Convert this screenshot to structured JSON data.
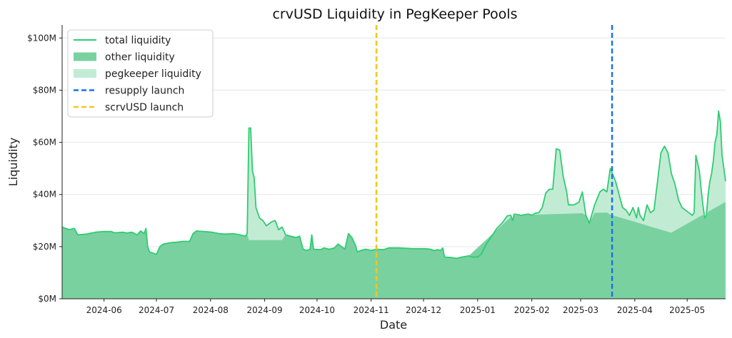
{
  "chart_data": {
    "type": "area",
    "title": "crvUSD Liquidity in PegKeeper Pools",
    "xlabel": "Date",
    "ylabel": "Liquidity",
    "x_range": [
      "2024-05-08",
      "2025-05-23"
    ],
    "ylim": [
      0,
      105
    ],
    "y_ticks": [
      {
        "value": 0,
        "label": "$0M"
      },
      {
        "value": 20,
        "label": "$20M"
      },
      {
        "value": 40,
        "label": "$40M"
      },
      {
        "value": 60,
        "label": "$60M"
      },
      {
        "value": 80,
        "label": "$80M"
      },
      {
        "value": 100,
        "label": "$100M"
      }
    ],
    "x_ticks": [
      {
        "date": "2024-06-01",
        "label": "2024-06"
      },
      {
        "date": "2024-07-01",
        "label": "2024-07"
      },
      {
        "date": "2024-08-01",
        "label": "2024-08"
      },
      {
        "date": "2024-09-01",
        "label": "2024-09"
      },
      {
        "date": "2024-10-01",
        "label": "2024-10"
      },
      {
        "date": "2024-11-01",
        "label": "2024-11"
      },
      {
        "date": "2024-12-01",
        "label": "2024-12"
      },
      {
        "date": "2025-01-01",
        "label": "2025-01"
      },
      {
        "date": "2025-02-01",
        "label": "2025-02"
      },
      {
        "date": "2025-03-01",
        "label": "2025-03"
      },
      {
        "date": "2025-04-01",
        "label": "2025-04"
      },
      {
        "date": "2025-05-01",
        "label": "2025-05"
      }
    ],
    "grid": "horizontal",
    "legend_position": "top-left",
    "colors": {
      "total": "#2ecc71",
      "other": "#7ad1a0",
      "pegkeeper": "#c2ebd4",
      "resupply": "#1a73e8",
      "scrvusd": "#f5c518"
    },
    "legend": [
      {
        "key": "total",
        "label": "total liquidity",
        "style": "line"
      },
      {
        "key": "other",
        "label": "other liquidity",
        "style": "patch"
      },
      {
        "key": "pegkeeper",
        "label": "pegkeeper liquidity",
        "style": "patch"
      },
      {
        "key": "resupply",
        "label": "resupply launch",
        "style": "dashed"
      },
      {
        "key": "scrvusd",
        "label": "scrvUSD launch",
        "style": "dashed"
      }
    ],
    "vlines": [
      {
        "key": "scrvusd",
        "date": "2024-11-04"
      },
      {
        "key": "resupply",
        "date": "2025-03-19"
      }
    ],
    "series": [
      {
        "name": "total liquidity",
        "key": "total",
        "points": [
          [
            "2024-05-08",
            27.5
          ],
          [
            "2024-05-12",
            26.5
          ],
          [
            "2024-05-15",
            27
          ],
          [
            "2024-05-17",
            24.5
          ],
          [
            "2024-05-22",
            24.8
          ],
          [
            "2024-05-27",
            25.5
          ],
          [
            "2024-06-01",
            25.8
          ],
          [
            "2024-06-05",
            25.8
          ],
          [
            "2024-06-07",
            25.3
          ],
          [
            "2024-06-12",
            25.5
          ],
          [
            "2024-06-14",
            25.2
          ],
          [
            "2024-06-17",
            25.5
          ],
          [
            "2024-06-20",
            24.5
          ],
          [
            "2024-06-22",
            26
          ],
          [
            "2024-06-24",
            25
          ],
          [
            "2024-06-25",
            27
          ],
          [
            "2024-06-26",
            20
          ],
          [
            "2024-06-27",
            18
          ],
          [
            "2024-06-29",
            17.5
          ],
          [
            "2024-07-01",
            17
          ],
          [
            "2024-07-03",
            20
          ],
          [
            "2024-07-05",
            21
          ],
          [
            "2024-07-09",
            21.5
          ],
          [
            "2024-07-14",
            21.8
          ],
          [
            "2024-07-16",
            22
          ],
          [
            "2024-07-20",
            22
          ],
          [
            "2024-07-22",
            25
          ],
          [
            "2024-07-24",
            26
          ],
          [
            "2024-07-28",
            25.8
          ],
          [
            "2024-08-02",
            25.5
          ],
          [
            "2024-08-06",
            25
          ],
          [
            "2024-08-09",
            24.8
          ],
          [
            "2024-08-14",
            25
          ],
          [
            "2024-08-18",
            24.5
          ],
          [
            "2024-08-21",
            24
          ],
          [
            "2024-08-22",
            25
          ],
          [
            "2024-08-23",
            65.5
          ],
          [
            "2024-08-24",
            65.5
          ],
          [
            "2024-08-25",
            49
          ],
          [
            "2024-08-26",
            46.5
          ],
          [
            "2024-08-27",
            35
          ],
          [
            "2024-08-29",
            31
          ],
          [
            "2024-08-31",
            30
          ],
          [
            "2024-09-02",
            28
          ],
          [
            "2024-09-05",
            29.5
          ],
          [
            "2024-09-07",
            30
          ],
          [
            "2024-09-09",
            26.5
          ],
          [
            "2024-09-11",
            27.5
          ],
          [
            "2024-09-13",
            24.5
          ],
          [
            "2024-09-16",
            24
          ],
          [
            "2024-09-19",
            23.5
          ],
          [
            "2024-09-21",
            24
          ],
          [
            "2024-09-23",
            19
          ],
          [
            "2024-09-25",
            18.5
          ],
          [
            "2024-09-27",
            19
          ],
          [
            "2024-09-28",
            24.5
          ],
          [
            "2024-09-29",
            19
          ],
          [
            "2024-10-03",
            18.8
          ],
          [
            "2024-10-05",
            19.5
          ],
          [
            "2024-10-08",
            19
          ],
          [
            "2024-10-11",
            19.5
          ],
          [
            "2024-10-13",
            21
          ],
          [
            "2024-10-15",
            20
          ],
          [
            "2024-10-17",
            19
          ],
          [
            "2024-10-19",
            25
          ],
          [
            "2024-10-21",
            23.5
          ],
          [
            "2024-10-23",
            20.5
          ],
          [
            "2024-10-24",
            18
          ],
          [
            "2024-10-26",
            18.5
          ],
          [
            "2024-10-29",
            19
          ],
          [
            "2024-11-01",
            18.5
          ],
          [
            "2024-11-04",
            19
          ],
          [
            "2024-11-08",
            18.8
          ],
          [
            "2024-11-11",
            19.5
          ],
          [
            "2024-11-17",
            19.5
          ],
          [
            "2024-11-25",
            19.2
          ],
          [
            "2024-12-02",
            19.2
          ],
          [
            "2024-12-05",
            19
          ],
          [
            "2024-12-07",
            18.5
          ],
          [
            "2024-12-09",
            18.8
          ],
          [
            "2024-12-11",
            18.5
          ],
          [
            "2024-12-12",
            19.5
          ],
          [
            "2024-12-13",
            16
          ],
          [
            "2024-12-17",
            15.8
          ],
          [
            "2024-12-20",
            15.5
          ],
          [
            "2024-12-23",
            16
          ],
          [
            "2024-12-27",
            16.5
          ],
          [
            "2024-12-29",
            16
          ],
          [
            "2025-01-01",
            16
          ],
          [
            "2025-01-03",
            17
          ],
          [
            "2025-01-06",
            21
          ],
          [
            "2025-01-09",
            24
          ],
          [
            "2025-01-12",
            27
          ],
          [
            "2025-01-15",
            29
          ],
          [
            "2025-01-18",
            31.8
          ],
          [
            "2025-01-20",
            32
          ],
          [
            "2025-01-21",
            30
          ],
          [
            "2025-01-22",
            32.5
          ],
          [
            "2025-01-26",
            32
          ],
          [
            "2025-01-30",
            32.5
          ],
          [
            "2025-02-01",
            32
          ],
          [
            "2025-02-03",
            32.8
          ],
          [
            "2025-02-05",
            33
          ],
          [
            "2025-02-07",
            35
          ],
          [
            "2025-02-09",
            40.5
          ],
          [
            "2025-02-11",
            42
          ],
          [
            "2025-02-13",
            42
          ],
          [
            "2025-02-15",
            57.5
          ],
          [
            "2025-02-17",
            57
          ],
          [
            "2025-02-19",
            47
          ],
          [
            "2025-02-21",
            41
          ],
          [
            "2025-02-22",
            36
          ],
          [
            "2025-02-25",
            36
          ],
          [
            "2025-02-28",
            37
          ],
          [
            "2025-03-02",
            41
          ],
          [
            "2025-03-04",
            32
          ],
          [
            "2025-03-06",
            29
          ],
          [
            "2025-03-09",
            36
          ],
          [
            "2025-03-12",
            41
          ],
          [
            "2025-03-14",
            42
          ],
          [
            "2025-03-16",
            41
          ],
          [
            "2025-03-18",
            50
          ],
          [
            "2025-03-21",
            45
          ],
          [
            "2025-03-23",
            40
          ],
          [
            "2025-03-25",
            35
          ],
          [
            "2025-03-27",
            34
          ],
          [
            "2025-03-29",
            32
          ],
          [
            "2025-03-31",
            35
          ],
          [
            "2025-04-02",
            31
          ],
          [
            "2025-04-03",
            35
          ],
          [
            "2025-04-04",
            32
          ],
          [
            "2025-04-06",
            30
          ],
          [
            "2025-04-08",
            36
          ],
          [
            "2025-04-10",
            33
          ],
          [
            "2025-04-12",
            34
          ],
          [
            "2025-04-14",
            45
          ],
          [
            "2025-04-16",
            56
          ],
          [
            "2025-04-18",
            58.5
          ],
          [
            "2025-04-20",
            56
          ],
          [
            "2025-04-22",
            48
          ],
          [
            "2025-04-24",
            44
          ],
          [
            "2025-04-26",
            38
          ],
          [
            "2025-04-28",
            35
          ],
          [
            "2025-04-30",
            34
          ],
          [
            "2025-05-02",
            33
          ],
          [
            "2025-05-04",
            32
          ],
          [
            "2025-05-05",
            33
          ],
          [
            "2025-05-06",
            55
          ],
          [
            "2025-05-07",
            52
          ],
          [
            "2025-05-08",
            49
          ],
          [
            "2025-05-09",
            42
          ],
          [
            "2025-05-10",
            36
          ],
          [
            "2025-05-11",
            31
          ],
          [
            "2025-05-12",
            32
          ],
          [
            "2025-05-13",
            40
          ],
          [
            "2025-05-14",
            45
          ],
          [
            "2025-05-15",
            48
          ],
          [
            "2025-05-16",
            53
          ],
          [
            "2025-05-17",
            60
          ],
          [
            "2025-05-18",
            63
          ],
          [
            "2025-05-19",
            72
          ],
          [
            "2025-05-20",
            68
          ],
          [
            "2025-05-21",
            55
          ],
          [
            "2025-05-22",
            50
          ],
          [
            "2025-05-23",
            45
          ]
        ]
      }
    ]
  }
}
